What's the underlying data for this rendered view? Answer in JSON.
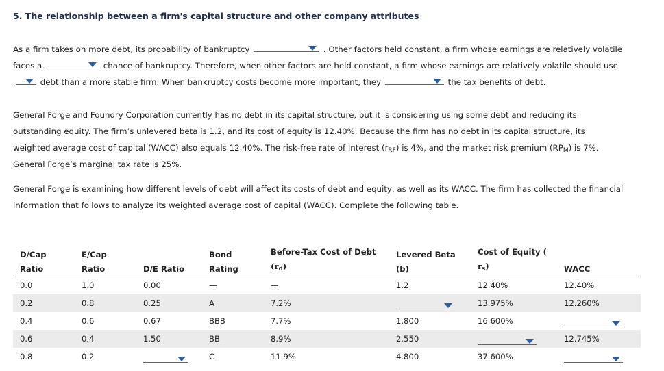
{
  "heading": "5. The relationship between a firm's capital structure and other company attributes",
  "para1": {
    "l1a": "As a firm takes on more debt, its probability of bankruptcy",
    "l1b": ". Other factors held constant, a firm whose earnings are relatively volatile",
    "l2a": "faces a",
    "l2b": "chance of bankruptcy. Therefore, when other factors are held constant, a firm whose earnings are relatively volatile should use",
    "l3a": "debt than a more stable firm. When bankruptcy costs become more important, they",
    "l3b": "the tax benefits of debt."
  },
  "para2": {
    "l1": "General Forge and Foundry Corporation currently has no debt in its capital structure, but it is considering using some debt and reducing its",
    "l2": "outstanding equity. The firm’s unlevered beta is 1.2, and its cost of equity is 12.40%. Because the firm has no debt in its capital structure, its",
    "l3a": "weighted average cost of capital (WACC) also equals 12.40%. The risk-free rate of interest (r",
    "l3b": "RF",
    "l3c": ") is 4%, and the market risk premium (RP",
    "l3d": "M",
    "l3e": ") is 7%.",
    "l4": "General Forge’s marginal tax rate is 25%."
  },
  "para3": {
    "l1": "General Forge is examining how different levels of debt will affect its costs of debt and equity, as well as its WACC. The firm has collected the financial",
    "l2": "information that follows to analyze its weighted average cost of capital (WACC). Complete the following table."
  },
  "table": {
    "headers": {
      "dcap1": "D/Cap",
      "dcap2": "Ratio",
      "ecap1": "E/Cap",
      "ecap2": "Ratio",
      "de": "D/E Ratio",
      "bond1": "Bond",
      "bond2": "Rating",
      "kd1": "Before-Tax Cost of Debt",
      "kd2a": "(r",
      "kd2b": "d",
      "kd2c": ")",
      "beta1": "Levered Beta",
      "beta2": "(b)",
      "ke1": "Cost of Equity (",
      "ke2a": "r",
      "ke2b": "s",
      "ke2c": ")",
      "wacc": "WACC"
    },
    "rows": [
      {
        "dcap": "0.0",
        "ecap": "1.0",
        "de": "0.00",
        "bond": "—",
        "kd": "—",
        "beta": "1.2",
        "ke": "12.40%",
        "wacc": "12.40%"
      },
      {
        "dcap": "0.2",
        "ecap": "0.8",
        "de": "0.25",
        "bond": "A",
        "kd": "7.2%",
        "beta": "",
        "ke": "13.975%",
        "wacc": "12.260%"
      },
      {
        "dcap": "0.4",
        "ecap": "0.6",
        "de": "0.67",
        "bond": "BBB",
        "kd": "7.7%",
        "beta": "1.800",
        "ke": "16.600%",
        "wacc": ""
      },
      {
        "dcap": "0.6",
        "ecap": "0.4",
        "de": "1.50",
        "bond": "BB",
        "kd": "8.9%",
        "beta": "2.550",
        "ke": "",
        "wacc": "12.745%"
      },
      {
        "dcap": "0.8",
        "ecap": "0.2",
        "de": "",
        "bond": "C",
        "kd": "11.9%",
        "beta": "4.800",
        "ke": "37.600%",
        "wacc": ""
      }
    ]
  },
  "colors": {
    "accent": "#2f6fb8",
    "row_alt": "#ebebeb",
    "heading": "#1f2e4d"
  }
}
